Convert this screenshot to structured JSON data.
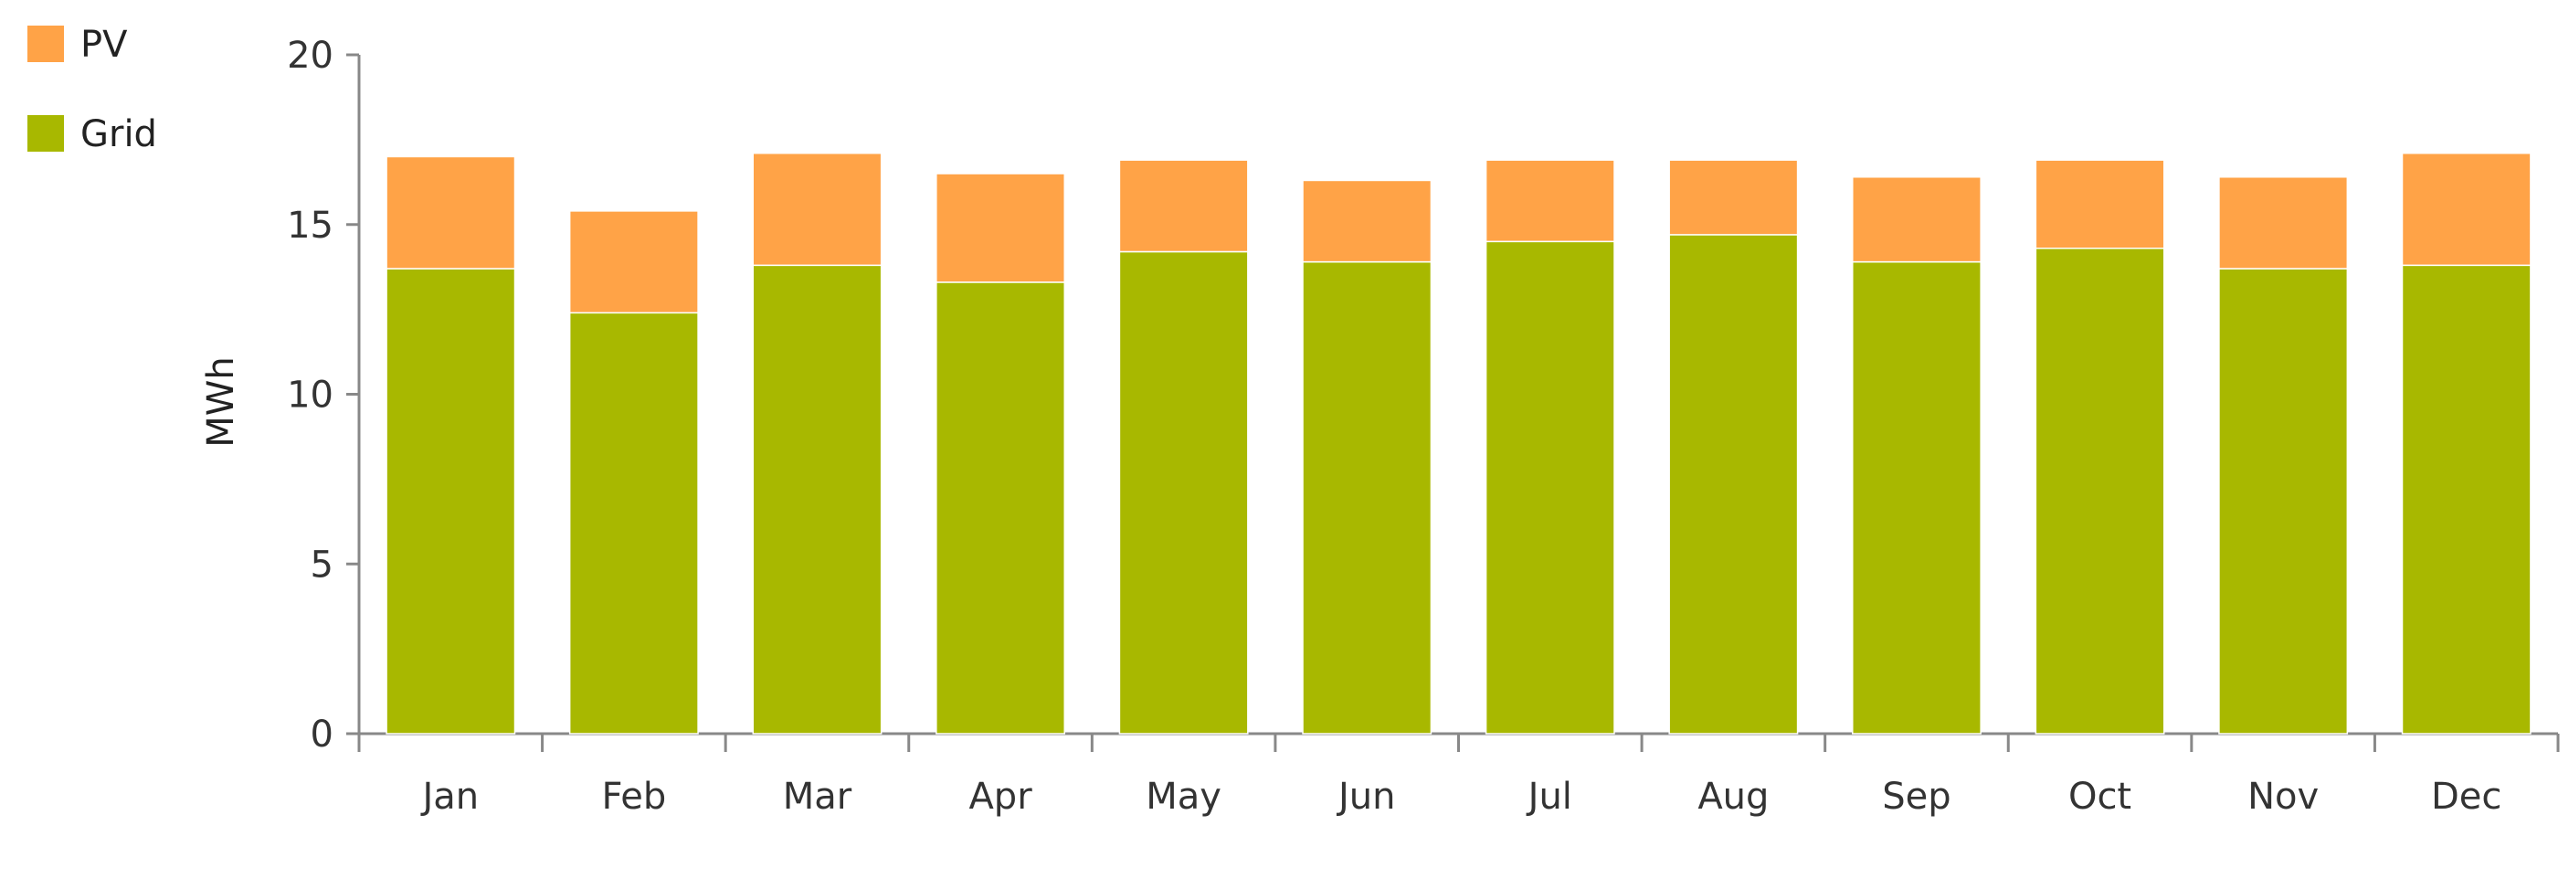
{
  "chart_data": {
    "type": "bar",
    "stacked": true,
    "title": "",
    "xlabel": "",
    "ylabel": "MWh",
    "ylim": [
      0,
      20
    ],
    "yticks": [
      "0",
      "5",
      "10",
      "15",
      "20"
    ],
    "grid": false,
    "legend_position": "top-left",
    "categories": [
      "Jan",
      "Feb",
      "Mar",
      "Apr",
      "May",
      "Jun",
      "Jul",
      "Aug",
      "Sep",
      "Oct",
      "Nov",
      "Dec"
    ],
    "series": [
      {
        "name": "Grid",
        "color": "#a8b800",
        "values": [
          13.7,
          12.4,
          13.8,
          13.3,
          14.2,
          13.9,
          14.5,
          14.7,
          13.9,
          14.3,
          13.7,
          13.8
        ]
      },
      {
        "name": "PV",
        "color": "#ffa347",
        "values": [
          3.3,
          3.0,
          3.3,
          3.2,
          2.7,
          2.4,
          2.4,
          2.2,
          2.5,
          2.6,
          2.7,
          3.3
        ]
      }
    ],
    "legend_order": [
      "PV",
      "Grid"
    ]
  }
}
